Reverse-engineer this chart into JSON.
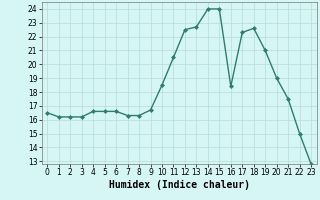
{
  "x": [
    0,
    1,
    2,
    3,
    4,
    5,
    6,
    7,
    8,
    9,
    10,
    11,
    12,
    13,
    14,
    15,
    16,
    17,
    18,
    19,
    20,
    21,
    22,
    23
  ],
  "y": [
    16.5,
    16.2,
    16.2,
    16.2,
    16.6,
    16.6,
    16.6,
    16.3,
    16.3,
    16.7,
    18.5,
    20.5,
    22.5,
    22.7,
    24.0,
    24.0,
    18.4,
    22.3,
    22.6,
    21.0,
    19.0,
    17.5,
    15.0,
    12.8
  ],
  "title": "",
  "xlabel": "Humidex (Indice chaleur)",
  "ylabel": "",
  "xlim": [
    -0.5,
    23.5
  ],
  "ylim": [
    12.8,
    24.5
  ],
  "yticks": [
    13,
    14,
    15,
    16,
    17,
    18,
    19,
    20,
    21,
    22,
    23,
    24
  ],
  "xticks": [
    0,
    1,
    2,
    3,
    4,
    5,
    6,
    7,
    8,
    9,
    10,
    11,
    12,
    13,
    14,
    15,
    16,
    17,
    18,
    19,
    20,
    21,
    22,
    23
  ],
  "line_color": "#2e7d6e",
  "marker": "D",
  "marker_size": 2.0,
  "bg_color": "#d6f5f5",
  "grid_color": "#b8dada",
  "xlabel_fontsize": 7.0,
  "tick_fontsize": 5.5,
  "linewidth": 1.0
}
